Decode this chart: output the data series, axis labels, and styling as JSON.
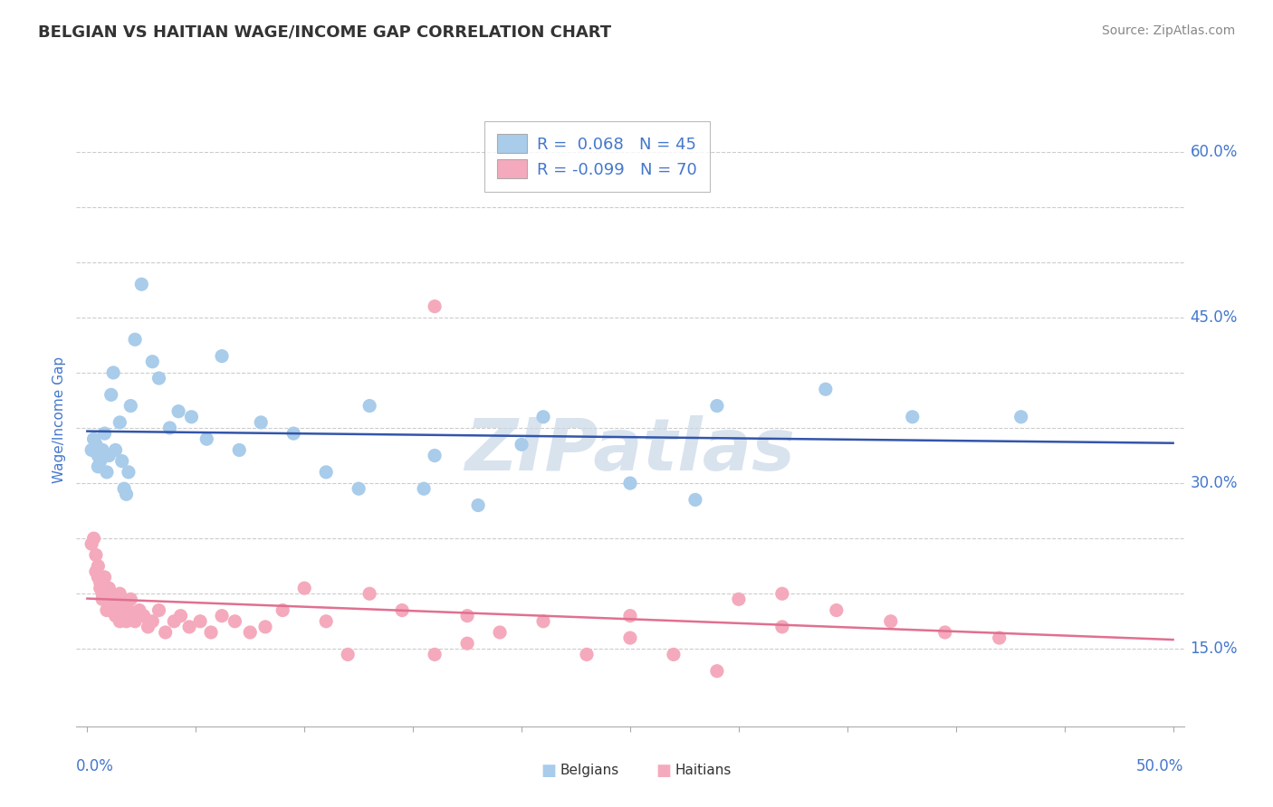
{
  "title": "BELGIAN VS HAITIAN WAGE/INCOME GAP CORRELATION CHART",
  "source": "Source: ZipAtlas.com",
  "ylabel": "Wage/Income Gap",
  "yticks": [
    0.15,
    0.2,
    0.25,
    0.3,
    0.35,
    0.4,
    0.45,
    0.5,
    0.55,
    0.6
  ],
  "ytick_labels": [
    "15.0%",
    "",
    "",
    "30.0%",
    "",
    "",
    "45.0%",
    "",
    "",
    "60.0%"
  ],
  "ylim": [
    0.08,
    0.635
  ],
  "xlim": [
    -0.005,
    0.505
  ],
  "belgian_color": "#A8CCEA",
  "haitian_color": "#F4AABC",
  "belgian_line_color": "#3355AA",
  "haitian_line_color": "#E07090",
  "legend_R_belgian": "R =  0.068",
  "legend_N_belgian": "N = 45",
  "legend_R_haitian": "R = -0.099",
  "legend_N_haitian": "N = 70",
  "belgian_x": [
    0.002,
    0.003,
    0.004,
    0.005,
    0.005,
    0.006,
    0.007,
    0.008,
    0.009,
    0.01,
    0.011,
    0.012,
    0.013,
    0.015,
    0.016,
    0.017,
    0.018,
    0.019,
    0.02,
    0.022,
    0.025,
    0.03,
    0.033,
    0.038,
    0.042,
    0.048,
    0.055,
    0.062,
    0.07,
    0.08,
    0.095,
    0.11,
    0.13,
    0.155,
    0.18,
    0.21,
    0.25,
    0.29,
    0.34,
    0.38,
    0.2,
    0.16,
    0.125,
    0.28,
    0.43
  ],
  "belgian_y": [
    0.33,
    0.34,
    0.335,
    0.325,
    0.315,
    0.32,
    0.33,
    0.345,
    0.31,
    0.325,
    0.38,
    0.4,
    0.33,
    0.355,
    0.32,
    0.295,
    0.29,
    0.31,
    0.37,
    0.43,
    0.48,
    0.41,
    0.395,
    0.35,
    0.365,
    0.36,
    0.34,
    0.415,
    0.33,
    0.355,
    0.345,
    0.31,
    0.37,
    0.295,
    0.28,
    0.36,
    0.3,
    0.37,
    0.385,
    0.36,
    0.335,
    0.325,
    0.295,
    0.285,
    0.36
  ],
  "haitian_x": [
    0.002,
    0.003,
    0.004,
    0.004,
    0.005,
    0.005,
    0.006,
    0.006,
    0.007,
    0.007,
    0.008,
    0.008,
    0.009,
    0.009,
    0.01,
    0.01,
    0.011,
    0.011,
    0.012,
    0.012,
    0.013,
    0.013,
    0.014,
    0.015,
    0.015,
    0.016,
    0.017,
    0.018,
    0.019,
    0.02,
    0.022,
    0.024,
    0.026,
    0.028,
    0.03,
    0.033,
    0.036,
    0.04,
    0.043,
    0.047,
    0.052,
    0.057,
    0.062,
    0.068,
    0.075,
    0.082,
    0.09,
    0.1,
    0.11,
    0.12,
    0.13,
    0.145,
    0.16,
    0.175,
    0.19,
    0.21,
    0.23,
    0.25,
    0.27,
    0.3,
    0.32,
    0.345,
    0.37,
    0.395,
    0.42,
    0.16,
    0.32,
    0.25,
    0.175,
    0.29
  ],
  "haitian_y": [
    0.245,
    0.25,
    0.235,
    0.22,
    0.215,
    0.225,
    0.205,
    0.21,
    0.2,
    0.195,
    0.205,
    0.215,
    0.2,
    0.185,
    0.195,
    0.205,
    0.2,
    0.19,
    0.185,
    0.195,
    0.18,
    0.19,
    0.185,
    0.2,
    0.175,
    0.18,
    0.19,
    0.175,
    0.185,
    0.195,
    0.175,
    0.185,
    0.18,
    0.17,
    0.175,
    0.185,
    0.165,
    0.175,
    0.18,
    0.17,
    0.175,
    0.165,
    0.18,
    0.175,
    0.165,
    0.17,
    0.185,
    0.205,
    0.175,
    0.145,
    0.2,
    0.185,
    0.145,
    0.18,
    0.165,
    0.175,
    0.145,
    0.16,
    0.145,
    0.195,
    0.17,
    0.185,
    0.175,
    0.165,
    0.16,
    0.46,
    0.2,
    0.18,
    0.155,
    0.13
  ],
  "background_color": "#FFFFFF",
  "grid_color": "#CCCCCC",
  "title_color": "#333333",
  "axis_label_color": "#4477CC",
  "watermark_text": "ZIPatlas",
  "watermark_color": "#C8D8E8",
  "xtick_positions": [
    0.0,
    0.05,
    0.1,
    0.15,
    0.2,
    0.25,
    0.3,
    0.35,
    0.4,
    0.45,
    0.5
  ]
}
